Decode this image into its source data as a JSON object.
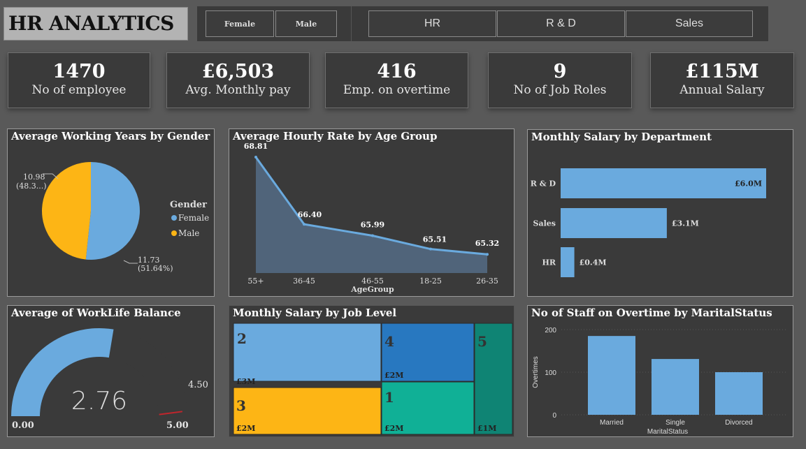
{
  "header": {
    "title": "HR ANALYTICS"
  },
  "slicers": {
    "gender": [
      "Female",
      "Male"
    ],
    "department": [
      "HR",
      "R & D",
      "Sales"
    ]
  },
  "kpis": [
    {
      "value": "1470",
      "label": "No of employee"
    },
    {
      "value": "£6,503",
      "label": "Avg. Monthly pay"
    },
    {
      "value": "416",
      "label": "Emp. on overtime"
    },
    {
      "value": "9",
      "label": "No of Job Roles"
    },
    {
      "value": "£115M",
      "label": "Annual Salary"
    }
  ],
  "colors": {
    "female": "#6aaade",
    "male": "#fdb515",
    "bar": "#6aaade",
    "needle": "#c0252c",
    "panel": "#3a3a3a",
    "background": "#595959"
  },
  "chart_data": [
    {
      "type": "pie",
      "title": "Average Working Years by Gender",
      "legend_title": "Gender",
      "legend_position": "right",
      "slices": [
        {
          "name": "Female",
          "value": 11.73,
          "label": "11.73",
          "pct_label": "(51.64%)"
        },
        {
          "name": "Male",
          "value": 10.98,
          "label": "10.98",
          "pct_label": "(48.3...)"
        }
      ]
    },
    {
      "type": "area",
      "title": "Average Hourly Rate by Age Group",
      "xlabel": "AgeGroup",
      "categories": [
        "55+",
        "36-45",
        "46-55",
        "18-25",
        "26-35"
      ],
      "values": [
        68.81,
        66.4,
        65.99,
        65.51,
        65.32
      ],
      "labels": [
        "68.81",
        "66.40",
        "65.99",
        "65.51",
        "65.32"
      ]
    },
    {
      "type": "bar",
      "orientation": "horizontal",
      "title": "Monthly Salary by Department",
      "categories": [
        "R & D",
        "Sales",
        "HR"
      ],
      "values": [
        6.0,
        3.1,
        0.4
      ],
      "labels": [
        "£6.0M",
        "£3.1M",
        "£0.4M"
      ]
    },
    {
      "type": "gauge",
      "title": "Average of WorkLife Balance",
      "value": 2.76,
      "value_label": "2.76",
      "min": 0,
      "min_label": "0.00",
      "max": 5,
      "max_label": "5.00",
      "target": 4.5,
      "target_label": "4.50"
    },
    {
      "type": "treemap",
      "title": "Monthly Salary by Job Level",
      "items": [
        {
          "name": "2",
          "value": 3,
          "label": "£3M",
          "color": "#6aaade"
        },
        {
          "name": "4",
          "value": 2,
          "label": "£2M",
          "color": "#2878c0"
        },
        {
          "name": "5",
          "value": 1,
          "label": "",
          "color": "#0f8474"
        },
        {
          "name": "3",
          "value": 2,
          "label": "£2M",
          "color": "#fdb515"
        },
        {
          "name": "1",
          "value": 2,
          "label": "£2M",
          "color": "#10b096"
        },
        {
          "name": "5-value",
          "value": 1,
          "label": "£1M",
          "color": "#0f8474"
        }
      ]
    },
    {
      "type": "bar",
      "title": "No of Staff on Overtime by MaritalStatus",
      "xlabel": "MaritalStatus",
      "ylabel": "Overtimes",
      "categories": [
        "Married",
        "Single",
        "Divorced"
      ],
      "values": [
        185,
        131,
        100
      ],
      "ylim": [
        0,
        230
      ],
      "yticks": [
        "0",
        "100",
        "200"
      ]
    }
  ]
}
